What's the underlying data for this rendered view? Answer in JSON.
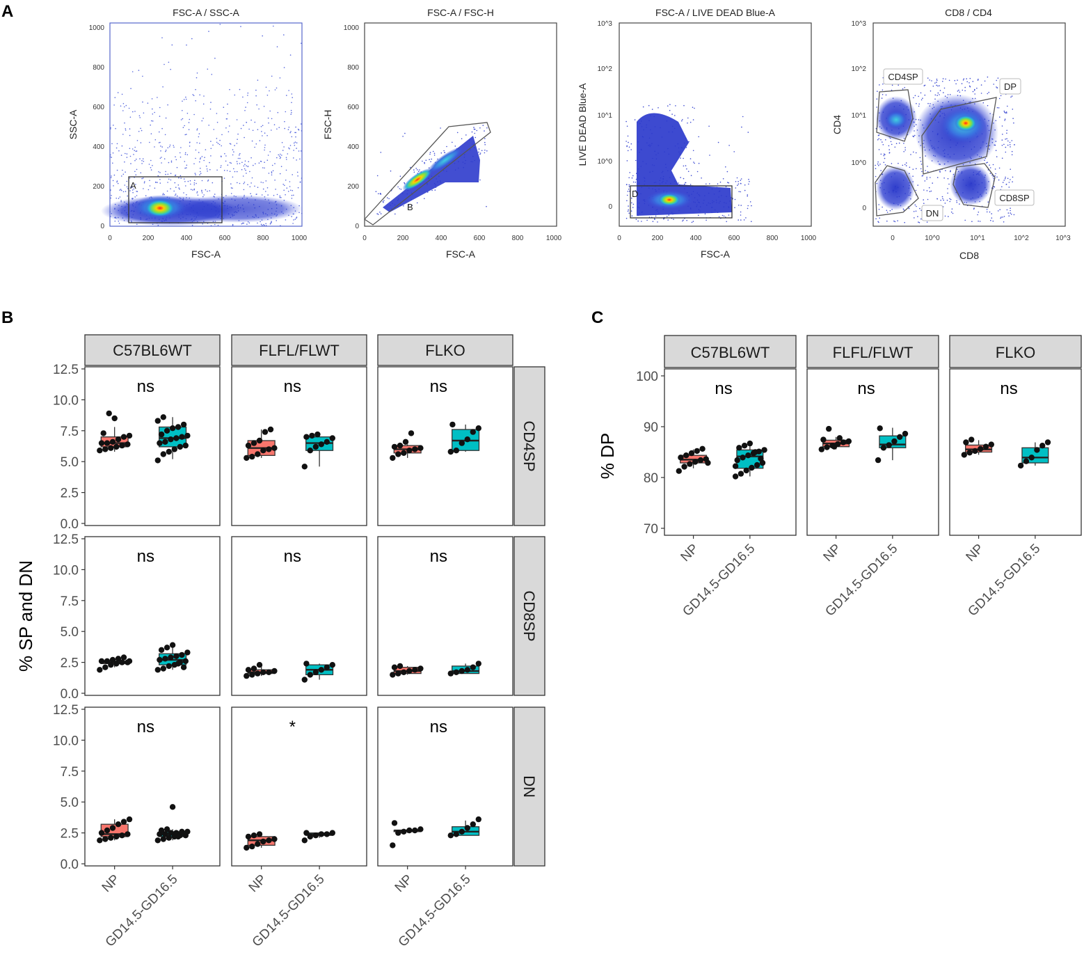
{
  "panel_labels": [
    "A",
    "B",
    "C"
  ],
  "chart_data": [
    {
      "type": "scatter",
      "subtype": "flow-cytometry-density",
      "title": "FSC-A / SSC-A",
      "xlabel": "FSC-A",
      "ylabel": "SSC-A",
      "xlim": [
        0,
        1000
      ],
      "ylim": [
        0,
        1000
      ],
      "xticks": [
        "0",
        "200",
        "400",
        "600",
        "800",
        "1000"
      ],
      "yticks": [
        "0",
        "200",
        "400",
        "600",
        "800",
        "1000"
      ],
      "gate": {
        "label": "A",
        "shape": "rectangle",
        "x_range": [
          100,
          590
        ],
        "y_range": [
          20,
          250
        ]
      },
      "hotspot": {
        "x": 260,
        "y": 90
      }
    },
    {
      "type": "scatter",
      "subtype": "flow-cytometry-density",
      "title": "FSC-A / FSC-H",
      "xlabel": "FSC-A",
      "ylabel": "FSC-H",
      "xlim": [
        0,
        1000
      ],
      "ylim": [
        0,
        1000
      ],
      "xticks": [
        "0",
        "200",
        "400",
        "600",
        "800",
        "1000"
      ],
      "yticks": [
        "0",
        "200",
        "400",
        "600",
        "800",
        "1000"
      ],
      "gate": {
        "label": "B",
        "shape": "polygon",
        "points": [
          [
            0,
            0
          ],
          [
            440,
            490
          ],
          [
            660,
            520
          ],
          [
            90,
            60
          ]
        ]
      },
      "hotspot": {
        "x": 260,
        "y": 240
      }
    },
    {
      "type": "scatter",
      "subtype": "flow-cytometry-density",
      "title": "FSC-A / LIVE DEAD Blue-A",
      "xlabel": "FSC-A",
      "ylabel": "LIVE DEAD Blue-A",
      "xlim": [
        0,
        1000
      ],
      "yscale": "log",
      "xticks": [
        "0",
        "200",
        "400",
        "600",
        "800",
        "1000"
      ],
      "yticks": [
        "0",
        "10^0",
        "10^1",
        "10^2",
        "10^3"
      ],
      "gate": {
        "label": "D",
        "shape": "rectangle",
        "x_range": [
          70,
          600
        ],
        "y_range": [
          "-0.4 (log units)",
          "0.9 (log units)"
        ]
      },
      "hotspot": {
        "x": 260,
        "y": "near 0"
      }
    },
    {
      "type": "scatter",
      "subtype": "flow-cytometry-density",
      "title": "CD8 / CD4",
      "xlabel": "CD8",
      "ylabel": "CD4",
      "xscale": "log",
      "yscale": "log",
      "xticks": [
        "0",
        "10^0",
        "10^1",
        "10^2",
        "10^3"
      ],
      "yticks": [
        "0",
        "10^0",
        "10^1",
        "10^2",
        "10^3"
      ],
      "gates": [
        "CD4SP",
        "DP",
        "CD8SP",
        "DN"
      ]
    },
    {
      "type": "box",
      "facet": "grid",
      "ylabel": "% SP and DN",
      "columns": [
        "C57BL6WT",
        "FLFL/FLWT",
        "FLKO"
      ],
      "rows": [
        "CD4SP",
        "CD8SP",
        "DN"
      ],
      "categories": [
        "NP",
        "GD14.5-GD16.5"
      ],
      "ylim": [
        0,
        12.5
      ],
      "yticks": [
        "0.0",
        "2.5",
        "5.0",
        "7.5",
        "10.0",
        "12.5"
      ],
      "colors": {
        "NP": "#f8766d",
        "GD14.5-GD16.5": "#00bfc4"
      },
      "panels": [
        {
          "row": "CD4SP",
          "column": "C57BL6WT",
          "significance": "ns",
          "boxes": [
            {
              "group": "NP",
              "min": 5.8,
              "q1": 6.2,
              "median": 6.5,
              "q3": 7.0,
              "max": 7.8,
              "points": [
                5.9,
                6.0,
                6.1,
                6.2,
                6.3,
                6.4,
                6.5,
                6.5,
                6.6,
                6.8,
                7.0,
                7.1,
                7.3,
                8.9,
                8.5
              ]
            },
            {
              "group": "GD14.5-GD16.5",
              "min": 5.2,
              "q1": 6.2,
              "median": 6.9,
              "q3": 7.8,
              "max": 8.6,
              "points": [
                5.1,
                5.6,
                5.8,
                6.0,
                6.2,
                6.3,
                6.5,
                6.6,
                6.8,
                6.9,
                7.0,
                7.1,
                7.2,
                7.5,
                7.7,
                7.8,
                8.0,
                8.3,
                8.6
              ]
            }
          ]
        },
        {
          "row": "CD4SP",
          "column": "FLFL/FLWT",
          "significance": "ns",
          "boxes": [
            {
              "group": "NP",
              "min": 5.3,
              "q1": 5.5,
              "median": 6.1,
              "q3": 6.7,
              "max": 7.6,
              "points": [
                5.3,
                5.4,
                5.6,
                5.9,
                6.0,
                6.1,
                6.3,
                6.5,
                6.7,
                7.4,
                7.6
              ]
            },
            {
              "group": "GD14.5-GD16.5",
              "min": 4.6,
              "q1": 5.9,
              "median": 6.5,
              "q3": 7.0,
              "max": 7.2,
              "points": [
                4.6,
                5.9,
                6.2,
                6.4,
                6.6,
                6.9,
                7.0,
                7.1,
                7.2
              ]
            }
          ]
        },
        {
          "row": "CD4SP",
          "column": "FLKO",
          "significance": "ns",
          "boxes": [
            {
              "group": "NP",
              "min": 5.3,
              "q1": 5.7,
              "median": 6.0,
              "q3": 6.3,
              "max": 6.4,
              "points": [
                5.3,
                5.6,
                5.7,
                5.9,
                6.0,
                6.1,
                6.2,
                6.3,
                6.6,
                7.3
              ]
            },
            {
              "group": "GD14.5-GD16.5",
              "min": 5.8,
              "q1": 5.9,
              "median": 6.7,
              "q3": 7.6,
              "max": 8.0,
              "points": [
                5.8,
                5.9,
                6.5,
                6.8,
                7.4,
                7.7,
                8.0
              ]
            }
          ]
        },
        {
          "row": "CD8SP",
          "column": "C57BL6WT",
          "significance": "ns",
          "boxes": [
            {
              "group": "NP",
              "min": 2.1,
              "q1": 2.4,
              "median": 2.5,
              "q3": 2.6,
              "max": 2.8,
              "points": [
                1.9,
                2.1,
                2.3,
                2.4,
                2.5,
                2.5,
                2.6,
                2.6,
                2.7,
                2.8,
                2.9,
                2.6
              ]
            },
            {
              "group": "GD14.5-GD16.5",
              "min": 1.9,
              "q1": 2.3,
              "median": 2.7,
              "q3": 3.2,
              "max": 3.9,
              "points": [
                1.9,
                2.0,
                2.2,
                2.3,
                2.5,
                2.6,
                2.7,
                2.8,
                2.9,
                3.0,
                3.1,
                3.3,
                3.5,
                3.7,
                3.9,
                2.4,
                2.1
              ]
            }
          ]
        },
        {
          "row": "CD8SP",
          "column": "FLFL/FLWT",
          "significance": "ns",
          "boxes": [
            {
              "group": "NP",
              "min": 1.4,
              "q1": 1.6,
              "median": 1.7,
              "q3": 1.9,
              "max": 2.3,
              "points": [
                1.4,
                1.5,
                1.6,
                1.7,
                1.7,
                1.8,
                1.9,
                2.0,
                2.3
              ]
            },
            {
              "group": "GD14.5-GD16.5",
              "min": 1.1,
              "q1": 1.5,
              "median": 1.9,
              "q3": 2.3,
              "max": 2.4,
              "points": [
                1.1,
                1.5,
                1.7,
                1.9,
                2.1,
                2.3,
                2.4
              ]
            }
          ]
        },
        {
          "row": "CD8SP",
          "column": "FLKO",
          "significance": "ns",
          "boxes": [
            {
              "group": "NP",
              "min": 1.5,
              "q1": 1.6,
              "median": 1.8,
              "q3": 2.1,
              "max": 2.2,
              "points": [
                1.5,
                1.6,
                1.7,
                1.8,
                1.9,
                2.0,
                2.1,
                2.2
              ]
            },
            {
              "group": "GD14.5-GD16.5",
              "min": 1.6,
              "q1": 1.6,
              "median": 1.8,
              "q3": 2.2,
              "max": 2.4,
              "points": [
                1.6,
                1.7,
                1.8,
                1.9,
                2.1,
                2.4
              ]
            }
          ]
        },
        {
          "row": "DN",
          "column": "C57BL6WT",
          "significance": "ns",
          "boxes": [
            {
              "group": "NP",
              "min": 1.9,
              "q1": 2.2,
              "median": 2.4,
              "q3": 3.2,
              "max": 3.6,
              "points": [
                1.9,
                2.0,
                2.1,
                2.2,
                2.3,
                2.4,
                2.5,
                2.7,
                2.9,
                3.2,
                3.4,
                3.6
              ]
            },
            {
              "group": "GD14.5-GD16.5",
              "min": 1.9,
              "q1": 2.2,
              "median": 2.4,
              "q3": 2.6,
              "max": 2.8,
              "points": [
                1.9,
                2.0,
                2.1,
                2.2,
                2.3,
                2.3,
                2.4,
                2.4,
                2.5,
                2.5,
                2.6,
                2.6,
                2.7,
                2.8,
                4.6,
                2.2
              ]
            }
          ]
        },
        {
          "row": "DN",
          "column": "FLFL/FLWT",
          "significance": "*",
          "boxes": [
            {
              "group": "NP",
              "min": 1.3,
              "q1": 1.5,
              "median": 1.9,
              "q3": 2.2,
              "max": 2.4,
              "points": [
                1.3,
                1.4,
                1.6,
                1.8,
                1.9,
                2.0,
                2.2,
                2.3,
                2.4
              ]
            },
            {
              "group": "GD14.5-GD16.5",
              "min": 2.1,
              "q1": 2.3,
              "median": 2.4,
              "q3": 2.5,
              "max": 2.5,
              "points": [
                1.9,
                2.2,
                2.3,
                2.4,
                2.4,
                2.5,
                2.5
              ]
            }
          ]
        },
        {
          "row": "DN",
          "column": "FLKO",
          "significance": "ns",
          "boxes": [
            {
              "group": "NP",
              "min": 2.5,
              "q1": 2.6,
              "median": 2.7,
              "q3": 2.7,
              "max": 2.8,
              "points": [
                1.5,
                2.5,
                2.6,
                2.7,
                2.7,
                2.8,
                3.3
              ]
            },
            {
              "group": "GD14.5-GD16.5",
              "min": 2.3,
              "q1": 2.3,
              "median": 2.6,
              "q3": 3.0,
              "max": 3.5,
              "points": [
                2.3,
                2.4,
                2.6,
                2.9,
                3.2,
                3.6
              ]
            }
          ]
        }
      ]
    },
    {
      "type": "box",
      "facet": "wrap",
      "ylabel": "% DP",
      "columns": [
        "C57BL6WT",
        "FLFL/FLWT",
        "FLKO"
      ],
      "categories": [
        "NP",
        "GD14.5-GD16.5"
      ],
      "ylim": [
        70,
        100
      ],
      "yticks": [
        "70",
        "80",
        "90",
        "100"
      ],
      "colors": {
        "NP": "#f8766d",
        "GD14.5-GD16.5": "#00bfc4"
      },
      "panels": [
        {
          "column": "C57BL6WT",
          "significance": "ns",
          "boxes": [
            {
              "group": "NP",
              "min": 82.0,
              "q1": 83.0,
              "median": 83.6,
              "q3": 84.4,
              "max": 85.5,
              "points": [
                81.5,
                82.3,
                82.8,
                83.2,
                83.5,
                83.7,
                84.0,
                84.4,
                84.8,
                85.2,
                85.6,
                83.0
              ]
            },
            {
              "group": "GD14.5-GD16.5",
              "min": 80.5,
              "q1": 82.0,
              "median": 84.2,
              "q3": 85.4,
              "max": 86.5,
              "points": [
                80.5,
                81.0,
                81.6,
                82.1,
                82.6,
                83.0,
                83.5,
                84.0,
                84.4,
                84.8,
                85.1,
                85.4,
                85.8,
                86.2,
                86.6,
                85.0,
                83.8,
                82.4
              ]
            }
          ]
        },
        {
          "column": "FLFL/FLWT",
          "significance": "ns",
          "boxes": [
            {
              "group": "NP",
              "min": 85.5,
              "q1": 86.0,
              "median": 86.6,
              "q3": 87.2,
              "max": 87.8,
              "points": [
                85.5,
                85.9,
                86.2,
                86.5,
                86.8,
                87.0,
                87.3,
                89.3,
                86.0,
                87.6
              ]
            },
            {
              "group": "GD14.5-GD16.5",
              "min": 83.5,
              "q1": 85.8,
              "median": 86.4,
              "q3": 88.0,
              "max": 89.5,
              "points": [
                83.5,
                85.8,
                86.3,
                87.0,
                87.8,
                88.4,
                89.4
              ]
            }
          ]
        },
        {
          "column": "FLKO",
          "significance": "ns",
          "boxes": [
            {
              "group": "NP",
              "min": 84.5,
              "q1": 85.0,
              "median": 85.5,
              "q3": 86.3,
              "max": 87.2,
              "points": [
                84.5,
                84.9,
                85.2,
                85.6,
                86.0,
                86.4,
                86.8,
                87.3
              ]
            },
            {
              "group": "GD14.5-GD16.5",
              "min": 82.5,
              "q1": 83.0,
              "median": 84.0,
              "q3": 85.8,
              "max": 86.8,
              "points": [
                82.5,
                83.3,
                84.0,
                85.4,
                86.2,
                86.8
              ]
            }
          ]
        }
      ]
    }
  ]
}
